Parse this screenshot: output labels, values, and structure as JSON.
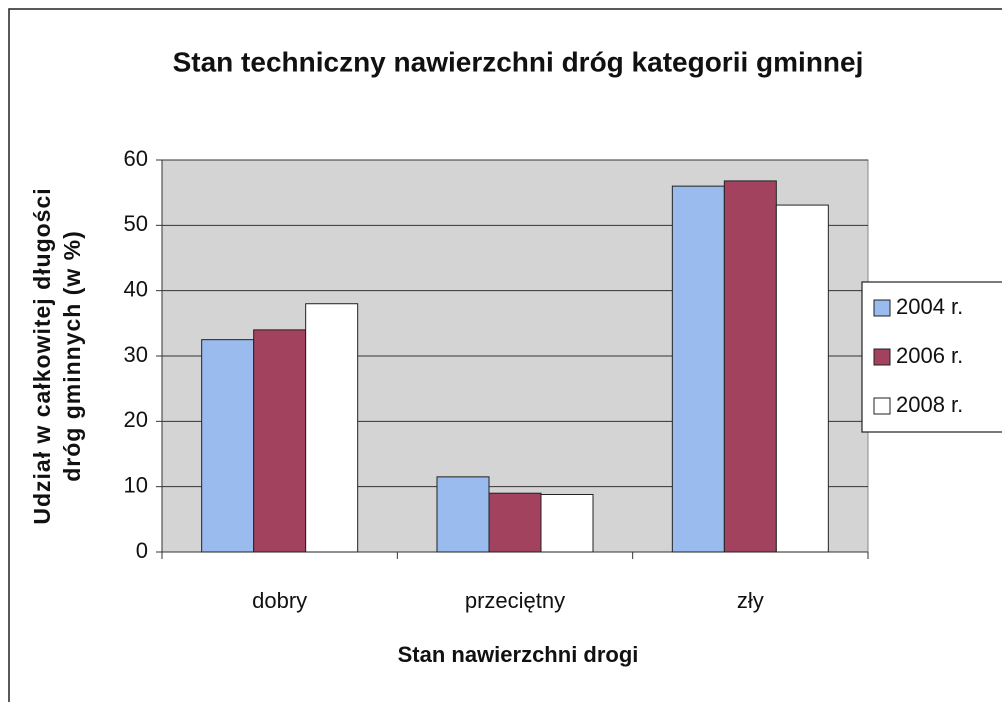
{
  "chart_data": {
    "type": "bar",
    "title": "Stan techniczny nawierzchni dróg kategorii gminnej",
    "xlabel": "Stan nawierzchni drogi",
    "ylabel": [
      "Udział w całkowitej długości",
      "dróg gminnych (w %)"
    ],
    "categories": [
      "dobry",
      "przeciętny",
      "zły"
    ],
    "series": [
      {
        "name": "2004 r.",
        "color": "#99bbee",
        "values": [
          32.5,
          11.5,
          56
        ]
      },
      {
        "name": "2006 r.",
        "color": "#a3425f",
        "values": [
          34,
          9,
          56.8
        ]
      },
      {
        "name": "2008 r.",
        "color": "#ffffff",
        "values": [
          38,
          8.8,
          53.1
        ]
      }
    ],
    "ylim": [
      0,
      60
    ],
    "yticks": [
      0,
      10,
      20,
      30,
      40,
      50,
      60
    ],
    "grid": true,
    "legend": "right"
  }
}
